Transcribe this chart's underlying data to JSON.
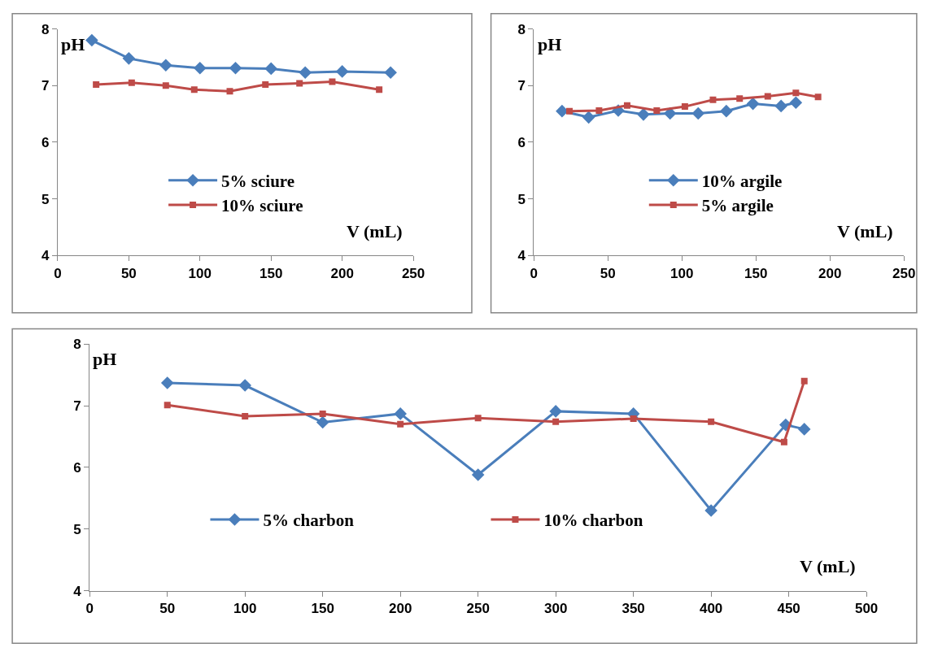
{
  "chart_data": [
    {
      "type": "line",
      "xlabel": "V (mL)",
      "ylabel": "pH",
      "xlim": [
        0,
        250
      ],
      "xticks": [
        0,
        50,
        100,
        150,
        200,
        250
      ],
      "ylim": [
        4,
        8
      ],
      "yticks": [
        4,
        5,
        6,
        7,
        8
      ],
      "grid": false,
      "legend": "bottom left",
      "series": [
        {
          "name": "5% sciure",
          "color": "#4a7ebb",
          "marker": "diamond",
          "x": [
            24,
            50,
            76,
            100,
            125,
            150,
            174,
            200,
            234
          ],
          "values": [
            7.8,
            7.48,
            7.36,
            7.31,
            7.31,
            7.3,
            7.23,
            7.25,
            7.23
          ]
        },
        {
          "name": "10% sciure",
          "color": "#be4b48",
          "marker": "square",
          "x": [
            27,
            52,
            76,
            96,
            121,
            146,
            170,
            193,
            226
          ],
          "values": [
            7.02,
            7.05,
            7.0,
            6.93,
            6.9,
            7.02,
            7.04,
            7.07,
            6.93
          ]
        }
      ]
    },
    {
      "type": "line",
      "xlabel": "V (mL)",
      "ylabel": "pH",
      "xlim": [
        0,
        250
      ],
      "xticks": [
        0,
        50,
        100,
        150,
        200,
        250
      ],
      "ylim": [
        4,
        8
      ],
      "yticks": [
        4,
        5,
        6,
        7,
        8
      ],
      "grid": false,
      "legend": "bottom left",
      "series": [
        {
          "name": "10% argile",
          "color": "#4a7ebb",
          "marker": "diamond",
          "x": [
            19,
            37,
            57,
            74,
            92,
            111,
            130,
            148,
            167,
            177
          ],
          "values": [
            6.55,
            6.44,
            6.56,
            6.49,
            6.51,
            6.51,
            6.55,
            6.68,
            6.64,
            6.7
          ]
        },
        {
          "name": "5% argile",
          "color": "#be4b48",
          "marker": "square",
          "x": [
            24,
            44,
            63,
            83,
            102,
            121,
            139,
            158,
            177,
            192
          ],
          "values": [
            6.55,
            6.56,
            6.65,
            6.56,
            6.63,
            6.75,
            6.77,
            6.81,
            6.87,
            6.8
          ]
        }
      ]
    },
    {
      "type": "line",
      "xlabel": "V (mL)",
      "ylabel": "pH",
      "xlim": [
        0,
        500
      ],
      "xticks": [
        0,
        50,
        100,
        150,
        200,
        250,
        300,
        350,
        400,
        450,
        500
      ],
      "ylim": [
        4,
        8
      ],
      "yticks": [
        4,
        5,
        6,
        7,
        8
      ],
      "grid": false,
      "legend": "bottom",
      "series": [
        {
          "name": "5% charbon",
          "color": "#4a7ebb",
          "marker": "diamond",
          "x": [
            50,
            100,
            150,
            200,
            250,
            300,
            350,
            400,
            448,
            460
          ],
          "values": [
            7.37,
            7.33,
            6.73,
            6.87,
            5.88,
            6.91,
            6.87,
            5.3,
            6.69,
            6.62
          ]
        },
        {
          "name": "10% charbon",
          "color": "#be4b48",
          "marker": "square",
          "x": [
            50,
            100,
            150,
            200,
            250,
            300,
            350,
            400,
            447,
            460
          ],
          "values": [
            7.01,
            6.83,
            6.87,
            6.7,
            6.8,
            6.74,
            6.79,
            6.74,
            6.41,
            7.4
          ]
        }
      ]
    }
  ]
}
